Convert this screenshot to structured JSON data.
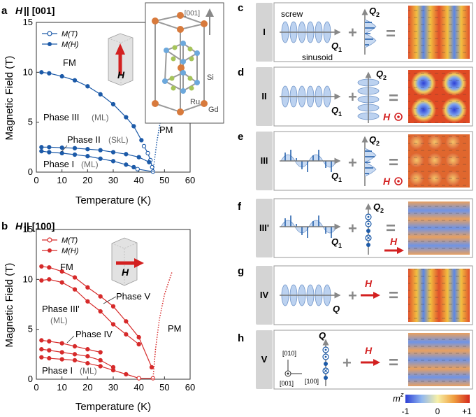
{
  "panel_a": {
    "letter": "a",
    "title_field": "H",
    "title_rest": " || [001]",
    "legend": [
      "M(T)",
      "M(H)"
    ],
    "labels": {
      "fm": "FM",
      "pm": "PM",
      "phase3": "Phase III",
      "phase3_tag": "(ML)",
      "phase2": "Phase II",
      "phase2_tag": "(SkL)",
      "phase1": "Phase I",
      "phase1_tag": "(ML)",
      "field_arrow": "H"
    },
    "crystal": {
      "axis": "[001]",
      "si": "Si",
      "ru": "Ru",
      "gd": "Gd"
    },
    "x_ticks": [
      "0",
      "10",
      "20",
      "30",
      "40",
      "50",
      "60"
    ],
    "y_ticks": [
      "0",
      "5",
      "10",
      "15"
    ],
    "xlabel": "Temperature (K)",
    "ylabel": "Magnetic Field (T)"
  },
  "panel_b": {
    "letter": "b",
    "title_field": "H",
    "title_rest": " || [100]",
    "legend": [
      "M(T)",
      "M(H)"
    ],
    "labels": {
      "fm": "FM",
      "pm": "PM",
      "phase5": "Phase V",
      "phase3p": "Phase III'",
      "phase3p_tag": "(ML)",
      "phase4": "Phase IV",
      "phase1": "Phase I",
      "phase1_tag": "(ML)",
      "field_arrow": "H"
    },
    "x_ticks": [
      "0",
      "10",
      "20",
      "30",
      "40",
      "50",
      "60"
    ],
    "y_ticks": [
      "0",
      "5",
      "10",
      "15"
    ],
    "xlabel": "Temperature (K)",
    "ylabel": "Magnetic Field (T)"
  },
  "chart_data": [
    {
      "type": "scatter",
      "title": "H || [001]",
      "xlabel": "Temperature (K)",
      "ylabel": "Magnetic Field (T)",
      "xlim": [
        0,
        60
      ],
      "ylim": [
        0,
        15
      ],
      "series": [
        {
          "name": "M(H) phase III boundary",
          "marker": "filled",
          "color": "#1c5aa8",
          "x": [
            2,
            5,
            10,
            15,
            20,
            25,
            30,
            35,
            38,
            41
          ],
          "y": [
            10.0,
            9.9,
            9.6,
            9.2,
            8.6,
            7.8,
            6.8,
            5.5,
            4.6,
            3.2
          ]
        },
        {
          "name": "M(T) phase III boundary",
          "marker": "open",
          "color": "#1c5aa8",
          "x": [
            42,
            43.5,
            44.5,
            45.2
          ],
          "y": [
            2.6,
            1.9,
            1.2,
            0.5
          ]
        },
        {
          "name": "M(H) phase II upper",
          "marker": "filled",
          "color": "#1c5aa8",
          "x": [
            2,
            5,
            10,
            15,
            20,
            25,
            30,
            35,
            40,
            44
          ],
          "y": [
            2.5,
            2.5,
            2.45,
            2.4,
            2.3,
            2.2,
            2.0,
            1.8,
            1.5,
            1.0
          ]
        },
        {
          "name": "M(H) phase II lower",
          "marker": "filled",
          "color": "#1c5aa8",
          "x": [
            2,
            5,
            10,
            15,
            20,
            25,
            30,
            35,
            38
          ],
          "y": [
            2.1,
            2.0,
            1.9,
            1.75,
            1.6,
            1.35,
            1.1,
            0.75,
            0.5
          ]
        },
        {
          "name": "M(T) zero-field",
          "marker": "open",
          "color": "#1c5aa8",
          "x": [
            39.5,
            45.5
          ],
          "y": [
            0.3,
            0.05
          ]
        }
      ],
      "pm_boundary_dotted": {
        "x": [
          45.5,
          47,
          49,
          51
        ],
        "y": [
          0,
          3,
          6,
          9
        ]
      }
    },
    {
      "type": "scatter",
      "title": "H || [100]",
      "xlabel": "Temperature (K)",
      "ylabel": "Magnetic Field (T)",
      "xlim": [
        0,
        60
      ],
      "ylim": [
        0,
        15
      ],
      "series": [
        {
          "name": "M(H) upper",
          "marker": "filled",
          "color": "#d62a2a",
          "x": [
            2,
            5,
            10,
            15,
            20,
            25,
            30,
            35,
            40,
            45
          ],
          "y": [
            11.3,
            11.2,
            10.8,
            10.2,
            9.2,
            8.3,
            7.3,
            5.8,
            4.2,
            1.2
          ]
        },
        {
          "name": "M(H) phase V lower",
          "marker": "filled",
          "color": "#d62a2a",
          "x": [
            2,
            5,
            10,
            15,
            20,
            25,
            30,
            35,
            40
          ],
          "y": [
            9.9,
            10.0,
            9.7,
            9.0,
            7.8,
            6.8,
            5.5,
            4.5,
            3.5
          ]
        },
        {
          "name": "M(H) phase IV upper",
          "marker": "filled",
          "color": "#d62a2a",
          "x": [
            2,
            5,
            10,
            15,
            20,
            25
          ],
          "y": [
            3.9,
            3.8,
            3.6,
            3.3,
            3.0,
            2.7
          ]
        },
        {
          "name": "M(H) phase IV lower",
          "marker": "filled",
          "color": "#d62a2a",
          "x": [
            2,
            5,
            10,
            15,
            20,
            25,
            30
          ],
          "y": [
            3.0,
            2.9,
            2.7,
            2.5,
            2.3,
            1.9,
            1.2
          ]
        },
        {
          "name": "M(H) phase I upper",
          "marker": "filled",
          "color": "#d62a2a",
          "x": [
            2,
            5,
            10,
            15,
            20,
            25,
            30,
            35,
            40
          ],
          "y": [
            2.2,
            2.1,
            2.0,
            1.9,
            1.6,
            1.3,
            0.9,
            0.5,
            0.1
          ]
        },
        {
          "name": "M(T) zero-field",
          "marker": "open",
          "color": "#d62a2a",
          "x": [
            40,
            45.5
          ],
          "y": [
            0.1,
            0.1
          ]
        }
      ],
      "pm_boundary_dotted": {
        "x": [
          45.5,
          46.5,
          48,
          50,
          53
        ],
        "y": [
          0,
          3,
          6,
          8.5,
          10.8
        ]
      }
    }
  ],
  "right_panels": [
    {
      "letter": "c",
      "phase": "I",
      "q1": "Q",
      "q1_sub": "1",
      "q2": "Q",
      "q2_sub": "2",
      "extra_top": "screw",
      "extra_bottom": "sinusoid"
    },
    {
      "letter": "d",
      "phase": "II",
      "q1": "Q",
      "q1_sub": "1",
      "q2": "Q",
      "q2_sub": "2",
      "field": "H"
    },
    {
      "letter": "e",
      "phase": "III",
      "q1": "Q",
      "q1_sub": "1",
      "q2": "Q",
      "q2_sub": "2",
      "field": "H"
    },
    {
      "letter": "f",
      "phase": "III'",
      "q1": "Q",
      "q1_sub": "1",
      "q2": "Q",
      "q2_sub": "2",
      "field": "H"
    },
    {
      "letter": "g",
      "phase": "IV",
      "q1": "Q",
      "field": "H"
    },
    {
      "letter": "h",
      "phase": "V",
      "q1": "Q",
      "field": "H",
      "axes": {
        "up": "[010]",
        "origin": "[001]",
        "right": "[100]"
      }
    }
  ],
  "colorbar": {
    "label": "m",
    "label_sup": "z",
    "min": "-1",
    "mid": "0",
    "max": "+1"
  },
  "colors": {
    "blue": "#1c5aa8",
    "red": "#d62a2a",
    "grey": "#888888"
  }
}
